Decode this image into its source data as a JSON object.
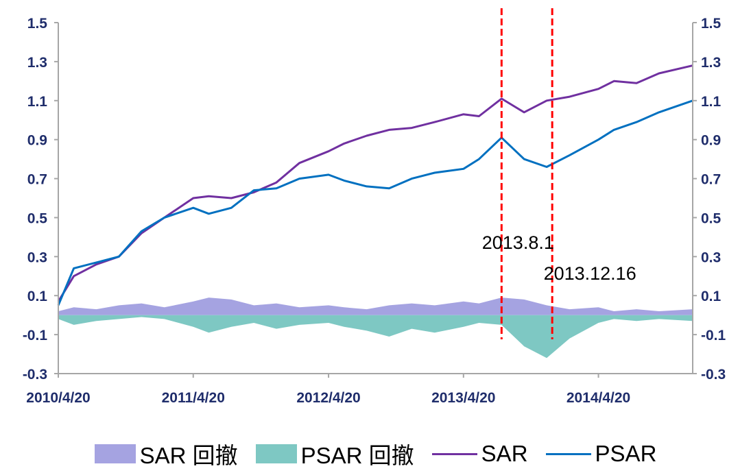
{
  "chart_data": {
    "type": "area",
    "ylim": [
      -0.3,
      1.5
    ],
    "y_ticks": [
      "1.5",
      "1.3",
      "1.1",
      "0.9",
      "0.7",
      "0.5",
      "0.3",
      "0.1",
      "-0.1",
      "-0.3"
    ],
    "x_tick_labels": [
      "2010/4/20",
      "2011/4/20",
      "2012/4/20",
      "2013/4/20",
      "2014/4/20"
    ],
    "x_range": [
      "2010/4/20",
      "2014/12/31"
    ],
    "grid": false,
    "legend_position": "bottom",
    "series": [
      {
        "name": "SAR 回撤",
        "kind": "area",
        "color": "#a5a3e1",
        "x": [
          "2010/4/20",
          "2010/6/1",
          "2010/8/1",
          "2010/10/1",
          "2010/12/1",
          "2011/2/1",
          "2011/4/20",
          "2011/6/1",
          "2011/8/1",
          "2011/10/1",
          "2011/12/1",
          "2012/2/1",
          "2012/4/20",
          "2012/6/1",
          "2012/8/1",
          "2012/10/1",
          "2012/12/1",
          "2013/2/1",
          "2013/4/20",
          "2013/6/1",
          "2013/8/1",
          "2013/10/1",
          "2013/12/1",
          "2014/2/1",
          "2014/4/20",
          "2014/6/1",
          "2014/8/1",
          "2014/10/1",
          "2014/12/31"
        ],
        "values": [
          0.02,
          0.04,
          0.03,
          0.05,
          0.06,
          0.04,
          0.07,
          0.09,
          0.08,
          0.05,
          0.06,
          0.04,
          0.05,
          0.04,
          0.03,
          0.05,
          0.06,
          0.05,
          0.07,
          0.06,
          0.09,
          0.08,
          0.05,
          0.03,
          0.04,
          0.02,
          0.03,
          0.02,
          0.03
        ]
      },
      {
        "name": "PSAR 回撤",
        "kind": "area",
        "color": "#7ec8c3",
        "x": [
          "2010/4/20",
          "2010/6/1",
          "2010/8/1",
          "2010/10/1",
          "2010/12/1",
          "2011/2/1",
          "2011/4/20",
          "2011/6/1",
          "2011/8/1",
          "2011/10/1",
          "2011/12/1",
          "2012/2/1",
          "2012/4/20",
          "2012/6/1",
          "2012/8/1",
          "2012/10/1",
          "2012/12/1",
          "2013/2/1",
          "2013/4/20",
          "2013/6/1",
          "2013/8/1",
          "2013/10/1",
          "2013/12/1",
          "2014/2/1",
          "2014/4/20",
          "2014/6/1",
          "2014/8/1",
          "2014/10/1",
          "2014/12/31"
        ],
        "values": [
          -0.02,
          -0.05,
          -0.03,
          -0.02,
          -0.01,
          -0.02,
          -0.06,
          -0.09,
          -0.06,
          -0.04,
          -0.07,
          -0.05,
          -0.04,
          -0.06,
          -0.08,
          -0.11,
          -0.07,
          -0.09,
          -0.06,
          -0.04,
          -0.05,
          -0.16,
          -0.22,
          -0.12,
          -0.04,
          -0.02,
          -0.03,
          -0.02,
          -0.03
        ]
      },
      {
        "name": "SAR",
        "kind": "line",
        "color": "#7030a0",
        "x": [
          "2010/4/20",
          "2010/6/1",
          "2010/8/1",
          "2010/10/1",
          "2010/12/1",
          "2011/2/1",
          "2011/4/20",
          "2011/6/1",
          "2011/8/1",
          "2011/10/1",
          "2011/12/1",
          "2012/2/1",
          "2012/4/20",
          "2012/6/1",
          "2012/8/1",
          "2012/10/1",
          "2012/12/1",
          "2013/2/1",
          "2013/4/20",
          "2013/6/1",
          "2013/8/1",
          "2013/10/1",
          "2013/12/1",
          "2014/2/1",
          "2014/4/20",
          "2014/6/1",
          "2014/8/1",
          "2014/10/1",
          "2014/12/31"
        ],
        "values": [
          0.07,
          0.2,
          0.26,
          0.3,
          0.42,
          0.5,
          0.6,
          0.61,
          0.6,
          0.63,
          0.68,
          0.78,
          0.84,
          0.88,
          0.92,
          0.95,
          0.96,
          0.99,
          1.03,
          1.02,
          1.11,
          1.04,
          1.1,
          1.12,
          1.16,
          1.2,
          1.19,
          1.24,
          1.28
        ]
      },
      {
        "name": "PSAR",
        "kind": "line",
        "color": "#0070c0",
        "x": [
          "2010/4/20",
          "2010/6/1",
          "2010/8/1",
          "2010/10/1",
          "2010/12/1",
          "2011/2/1",
          "2011/4/20",
          "2011/6/1",
          "2011/8/1",
          "2011/10/1",
          "2011/12/1",
          "2012/2/1",
          "2012/4/20",
          "2012/6/1",
          "2012/8/1",
          "2012/10/1",
          "2012/12/1",
          "2013/2/1",
          "2013/4/20",
          "2013/6/1",
          "2013/8/1",
          "2013/10/1",
          "2013/12/1",
          "2014/2/1",
          "2014/4/20",
          "2014/6/1",
          "2014/8/1",
          "2014/10/1",
          "2014/12/31"
        ],
        "values": [
          0.05,
          0.24,
          0.27,
          0.3,
          0.43,
          0.5,
          0.55,
          0.52,
          0.55,
          0.64,
          0.65,
          0.7,
          0.72,
          0.69,
          0.66,
          0.65,
          0.7,
          0.73,
          0.75,
          0.8,
          0.91,
          0.8,
          0.76,
          0.82,
          0.9,
          0.95,
          0.99,
          1.04,
          1.1
        ]
      }
    ],
    "annotations": [
      {
        "date": "2013/8/1",
        "label": "2013.8.1",
        "color": "#ff0000"
      },
      {
        "date": "2013/12/16",
        "label": "2013.12.16",
        "color": "#ff0000"
      }
    ]
  }
}
